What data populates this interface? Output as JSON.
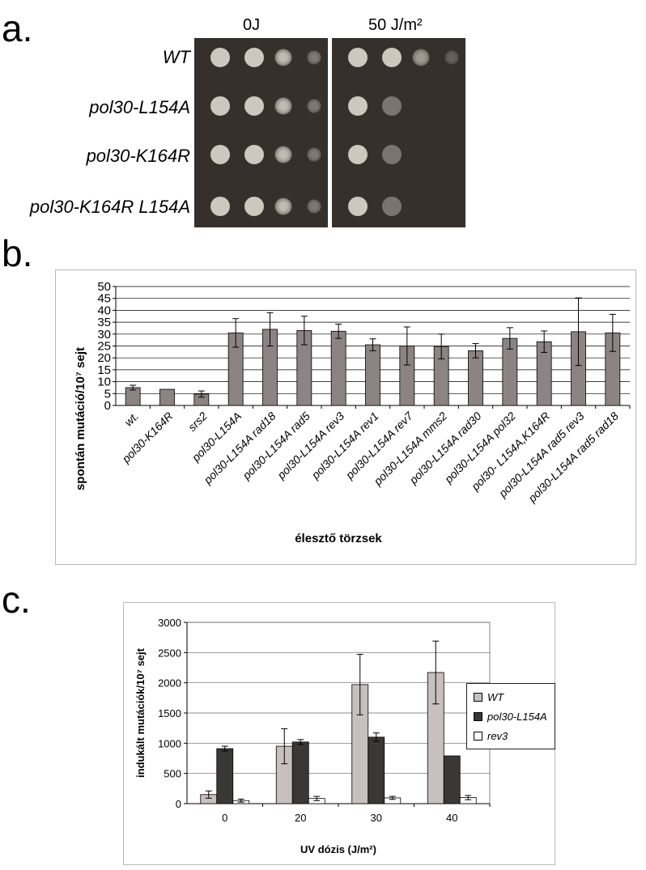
{
  "panels": {
    "a": "a.",
    "b": "b.",
    "c": "c."
  },
  "panel_a": {
    "plates": [
      {
        "label": "0J",
        "survival": [
          1,
          1,
          1,
          1
        ]
      },
      {
        "label": "50 J/m²",
        "survival": [
          1,
          0.4,
          0.4,
          0.4
        ]
      }
    ],
    "strains": [
      "WT",
      "pol30-L154A",
      "pol30-K164R",
      "pol30-K164R L154A"
    ],
    "colors": {
      "plate": "#35302c",
      "colony": "#cdc7bd"
    }
  },
  "chart_data": [
    {
      "type": "bar",
      "ylabel": "spontán mutáció/10⁷ sejt",
      "xlabel": "élesztő törzsek",
      "ylim": [
        0,
        50
      ],
      "yticks": [
        0,
        5,
        10,
        15,
        20,
        25,
        30,
        35,
        40,
        45,
        50
      ],
      "grid": true,
      "bar_color": "#8c8482",
      "categories": [
        "wt.",
        "pol30-K164R",
        "srs2",
        "pol30-L154A",
        "pol30-L154A rad18",
        "pol30-L154A rad5",
        "pol30-L154A rev3",
        "pol30-L154A rev1",
        "pol30-L154A rev7",
        "pol30-L154A mms2",
        "pol30-L154A rad30",
        "pol30-L154A pol32",
        "pol30- L154A,K164R",
        "pol30-L154A rad5 rev3",
        "pol30-L154A rad5 rad18"
      ],
      "values": [
        7.5,
        6.8,
        4.8,
        30.5,
        32,
        31.5,
        31.2,
        25.5,
        25,
        24.8,
        23,
        28.2,
        26.8,
        31,
        30.5
      ],
      "errors": [
        1.0,
        0,
        1.3,
        6.0,
        7.0,
        6.0,
        3.0,
        2.5,
        8.0,
        5.2,
        3.0,
        4.5,
        4.5,
        14.2,
        7.8
      ]
    },
    {
      "type": "bar",
      "ylabel": "indukált mutációk/10⁷ sejt",
      "xlabel": "UV dózis (J/m²)",
      "ylim": [
        0,
        3000
      ],
      "yticks": [
        0,
        500,
        1000,
        1500,
        2000,
        2500,
        3000
      ],
      "grid": true,
      "legend": "right",
      "categories": [
        "0",
        "20",
        "30",
        "40"
      ],
      "series": [
        {
          "name": "WT",
          "color": "#c8bfbf",
          "values": [
            150,
            950,
            1970,
            2170
          ],
          "errors": [
            60,
            290,
            500,
            520
          ]
        },
        {
          "name": "pol30-L154A",
          "color": "#3a3835",
          "values": [
            910,
            1020,
            1100,
            790
          ],
          "errors": [
            40,
            40,
            70,
            0
          ]
        },
        {
          "name": "rev3",
          "color": "#ffffff",
          "values": [
            50,
            85,
            95,
            100
          ],
          "errors": [
            25,
            35,
            25,
            35
          ]
        }
      ]
    }
  ]
}
